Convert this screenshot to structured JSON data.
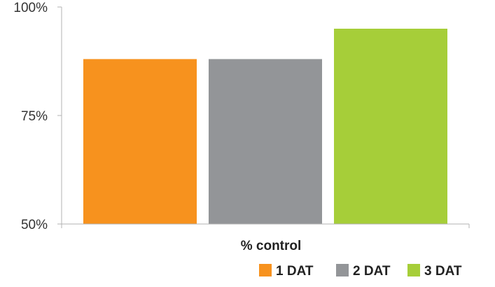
{
  "chart_data": {
    "type": "bar",
    "categories": [
      "% control"
    ],
    "series": [
      {
        "name": "1 DAT",
        "values": [
          88
        ],
        "color": "#F7921E"
      },
      {
        "name": "2 DAT",
        "values": [
          88
        ],
        "color": "#939598"
      },
      {
        "name": "3 DAT",
        "values": [
          95
        ],
        "color": "#A6CE39"
      }
    ],
    "xlabel": "% control",
    "ylabel": "",
    "ylim": [
      50,
      100
    ],
    "yticks": [
      50,
      75,
      100
    ],
    "ytick_labels": [
      "50%",
      "75%",
      "100%"
    ],
    "grid": false,
    "legend_position": "bottom-right"
  }
}
